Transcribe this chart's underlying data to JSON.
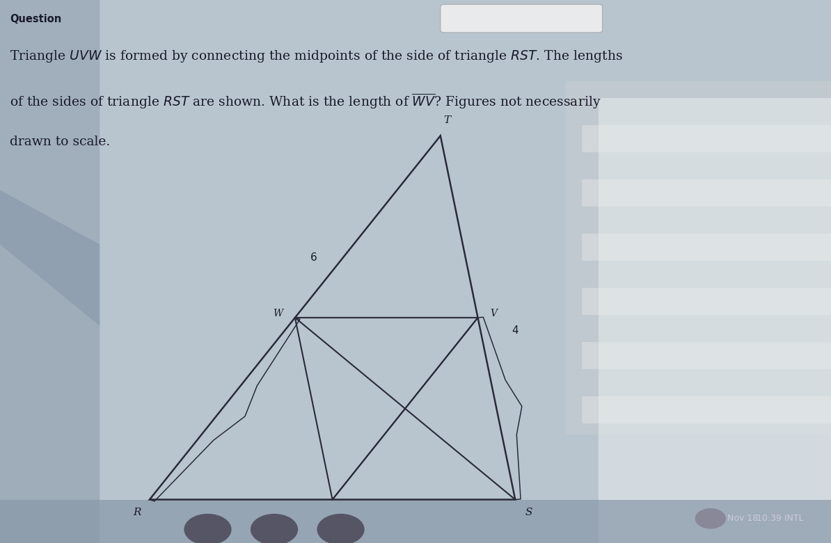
{
  "bg_color": "#b8c5ce",
  "title_text": "Question",
  "R": [
    0.18,
    0.08
  ],
  "S": [
    0.62,
    0.08
  ],
  "T": [
    0.53,
    0.75
  ],
  "label_R": "R",
  "label_S": "S",
  "label_T": "T",
  "label_W": "W",
  "label_V": "V",
  "side_RT_label": "6",
  "side_TS_label": "4",
  "line_color": "#2a2a3a",
  "font_color": "#1a1a2a",
  "bottom_text": "Nov 18",
  "bottom_text2": "10:39 INTL",
  "left_dark_color": "#8fa0aa",
  "right_dark_color": "#9ab0bc",
  "top_bar_color": "#c8d4db"
}
